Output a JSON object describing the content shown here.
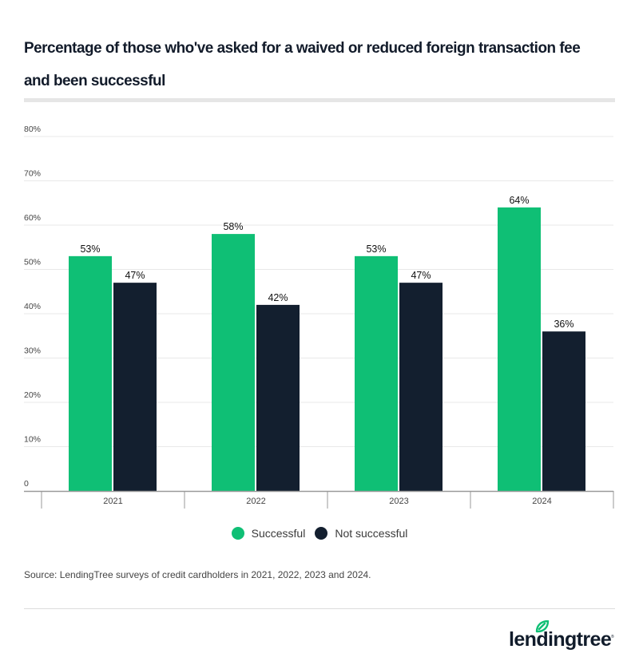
{
  "chart_data": {
    "type": "bar",
    "title": "Percentage of those who've asked for a waived or reduced foreign transaction fee and been successful",
    "categories": [
      "2021",
      "2022",
      "2023",
      "2024"
    ],
    "series": [
      {
        "name": "Successful",
        "color": "#0fbf75",
        "values": [
          53,
          58,
          53,
          64
        ]
      },
      {
        "name": "Not successful",
        "color": "#131f2f",
        "values": [
          47,
          42,
          47,
          36
        ]
      }
    ],
    "value_suffix": "%",
    "ylim": [
      0,
      80
    ],
    "yticks": [
      0,
      10,
      20,
      30,
      40,
      50,
      60,
      70,
      80
    ],
    "ytick_labels": [
      "0",
      "10%",
      "20%",
      "30%",
      "40%",
      "50%",
      "60%",
      "70%",
      "80%"
    ],
    "xlabel": "",
    "ylabel": "",
    "grid": true,
    "legend_position": "bottom-center",
    "data_labels": true
  },
  "header": {
    "title": "Percentage of those who've asked for a waived or reduced foreign transaction fee and been successful"
  },
  "legend": {
    "items": [
      {
        "label": "Successful",
        "color": "#0fbf75"
      },
      {
        "label": "Not successful",
        "color": "#131f2f"
      }
    ]
  },
  "footer": {
    "source": "Source: LendingTree surveys of credit cardholders in 2021, 2022, 2023 and 2024.",
    "logo_text": "lendingtree",
    "logo_icon": "leaf-icon",
    "brand_color": "#0fbf75"
  }
}
